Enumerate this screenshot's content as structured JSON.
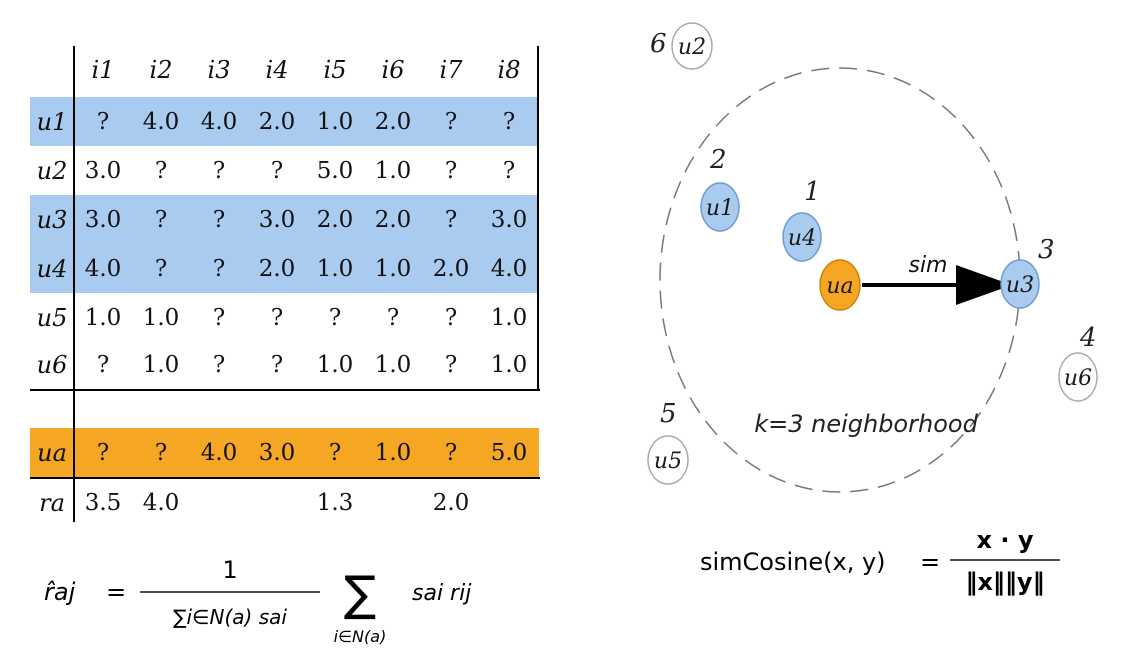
{
  "table": {
    "columns": [
      "i1",
      "i2",
      "i3",
      "i4",
      "i5",
      "i6",
      "i7",
      "i8"
    ],
    "rows": [
      {
        "user": "u1",
        "values": [
          "?",
          "4.0",
          "4.0",
          "2.0",
          "1.0",
          "2.0",
          "?",
          "?"
        ],
        "highlight": "blue"
      },
      {
        "user": "u2",
        "values": [
          "3.0",
          "?",
          "?",
          "?",
          "5.0",
          "1.0",
          "?",
          "?"
        ],
        "highlight": "none"
      },
      {
        "user": "u3",
        "values": [
          "3.0",
          "?",
          "?",
          "3.0",
          "2.0",
          "2.0",
          "?",
          "3.0"
        ],
        "highlight": "blue"
      },
      {
        "user": "u4",
        "values": [
          "4.0",
          "?",
          "?",
          "2.0",
          "1.0",
          "1.0",
          "2.0",
          "4.0"
        ],
        "highlight": "blue"
      },
      {
        "user": "u5",
        "values": [
          "1.0",
          "1.0",
          "?",
          "?",
          "?",
          "?",
          "?",
          "1.0"
        ],
        "highlight": "none"
      },
      {
        "user": "u6",
        "values": [
          "?",
          "1.0",
          "?",
          "?",
          "1.0",
          "1.0",
          "?",
          "1.0"
        ],
        "highlight": "none"
      }
    ],
    "active_user": {
      "user": "ua",
      "values": [
        "?",
        "?",
        "4.0",
        "3.0",
        "?",
        "1.0",
        "?",
        "5.0"
      ],
      "highlight": "orange"
    },
    "prediction_row": {
      "label": "ra",
      "values": [
        "3.5",
        "4.0",
        "",
        "",
        "1.3",
        "",
        "2.0",
        ""
      ]
    }
  },
  "colors": {
    "blue": "#a8cbef",
    "orange": "#f5a623",
    "node_blue": "#a8cbef",
    "node_orange": "#f5a623"
  },
  "diagram": {
    "neighborhood_label": "k=3 neighborhood",
    "edge_label": "sim",
    "active_node": "ua",
    "nodes": [
      {
        "name": "u1",
        "rank": "2",
        "in_neighborhood": true
      },
      {
        "name": "u4",
        "rank": "1",
        "in_neighborhood": true
      },
      {
        "name": "u3",
        "rank": "3",
        "in_neighborhood": true
      },
      {
        "name": "u6",
        "rank": "4",
        "in_neighborhood": false
      },
      {
        "name": "u5",
        "rank": "5",
        "in_neighborhood": false
      },
      {
        "name": "u2",
        "rank": "6",
        "in_neighborhood": false
      }
    ]
  },
  "formulas": {
    "prediction": {
      "lhs": "r̂aj",
      "equals": "=",
      "numerator": "1",
      "denominator": "∑i∈N(a) sai",
      "sum_symbol": "∑",
      "sum_index": "i∈N(a)",
      "term": "sai rij"
    },
    "cosine": {
      "lhs": "simCosine(x, y)",
      "equals": "=",
      "numerator": "x · y",
      "denominator": "‖x‖‖y‖"
    }
  }
}
